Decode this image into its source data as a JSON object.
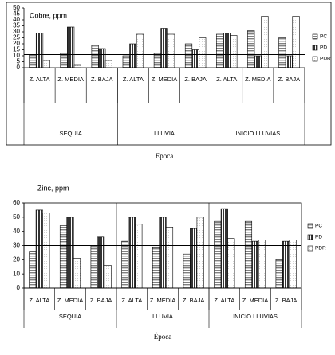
{
  "chart_data": [
    {
      "type": "bar",
      "title": "Cobre, ppm",
      "x_label": "Epoca",
      "categories": [
        "Z. ALTA",
        "Z. MEDIA",
        "Z. BAJA",
        "Z. ALTA",
        "Z. MEDIA",
        "Z. BAJA",
        "Z. ALTA",
        "Z. MEDIA",
        "Z. BAJA"
      ],
      "category_groups": [
        "SEQUIA",
        "LLUVIA",
        "INICIO LLUVIAS"
      ],
      "series": [
        {
          "name": "PC",
          "color": "#808080",
          "pattern": "horizontal",
          "values": [
            11,
            12,
            19,
            10,
            12,
            20,
            28,
            31,
            25
          ]
        },
        {
          "name": "PD",
          "color": "#333333",
          "pattern": "vertical",
          "values": [
            29,
            34,
            16,
            20,
            33,
            15,
            29,
            10,
            10
          ]
        },
        {
          "name": "PDR",
          "color": "#bbbbbb",
          "pattern": "dots",
          "values": [
            6,
            2,
            6,
            28,
            28,
            25,
            27,
            43,
            43
          ]
        }
      ],
      "reference_line": 11,
      "ylim": [
        0,
        50
      ],
      "yticks": [
        0,
        5,
        10,
        15,
        20,
        25,
        30,
        35,
        40,
        45,
        50
      ],
      "grid": false,
      "legend": "right"
    },
    {
      "type": "bar",
      "title": "Zinc, ppm",
      "x_label": "Época",
      "categories": [
        "Z. ALTA",
        "Z. MEDIA",
        "Z. BAJA",
        "Z. ALTA",
        "Z. MEDIA",
        "Z. BAJA",
        "Z. ALTA",
        "Z. MEDIA",
        "Z. BAJA"
      ],
      "category_groups": [
        "SEQUIA",
        "LLUVIA",
        "INICIO LLUVIAS"
      ],
      "series": [
        {
          "name": "PC",
          "color": "#808080",
          "pattern": "horizontal",
          "values": [
            26,
            44,
            30,
            33,
            29,
            24,
            47,
            47,
            20
          ]
        },
        {
          "name": "PD",
          "color": "#333333",
          "pattern": "vertical",
          "values": [
            55,
            50,
            36,
            50,
            50,
            42,
            56,
            33,
            33
          ]
        },
        {
          "name": "PDR",
          "color": "#bbbbbb",
          "pattern": "dots",
          "values": [
            53,
            21,
            16,
            45,
            43,
            50,
            35,
            34,
            34
          ]
        }
      ],
      "reference_line": 30,
      "ylim": [
        0,
        60
      ],
      "yticks": [
        0,
        10,
        20,
        30,
        40,
        50,
        60
      ],
      "grid": false,
      "legend": "right"
    }
  ]
}
